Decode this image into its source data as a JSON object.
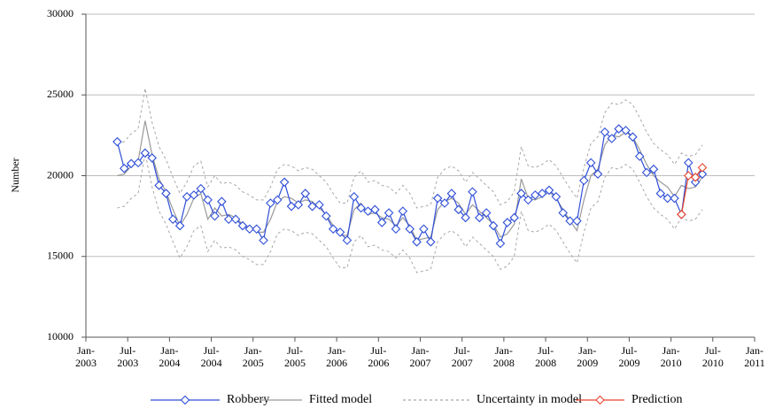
{
  "chart_data": {
    "type": "line",
    "y_label": "Number",
    "ylim": [
      10000,
      30000
    ],
    "yticks": [
      10000,
      15000,
      20000,
      25000,
      30000
    ],
    "grid": true,
    "xlim": [
      "2003-01",
      "2011-01"
    ],
    "xticks": [
      {
        "value": "2003-01",
        "label": "Jan-\n2003"
      },
      {
        "value": "2003-07",
        "label": "Jul-\n2003"
      },
      {
        "value": "2004-01",
        "label": "Jan-\n2004"
      },
      {
        "value": "2004-07",
        "label": "Jul-\n2004"
      },
      {
        "value": "2005-01",
        "label": "Jan-\n2005"
      },
      {
        "value": "2005-07",
        "label": "Jul-\n2005"
      },
      {
        "value": "2006-01",
        "label": "Jan-\n2006"
      },
      {
        "value": "2006-07",
        "label": "Jul-\n2006"
      },
      {
        "value": "2007-01",
        "label": "Jan-\n2007"
      },
      {
        "value": "2007-07",
        "label": "Jul-\n2007"
      },
      {
        "value": "2008-01",
        "label": "Jan-\n2008"
      },
      {
        "value": "2008-07",
        "label": "Jul-\n2008"
      },
      {
        "value": "2009-01",
        "label": "Jan-\n2009"
      },
      {
        "value": "2009-07",
        "label": "Jul-\n2009"
      },
      {
        "value": "2010-01",
        "label": "Jan-\n2010"
      },
      {
        "value": "2010-07",
        "label": "Jul-\n2010"
      },
      {
        "value": "2011-01",
        "label": "Jan-\n2011"
      }
    ],
    "x": [
      "2003-05",
      "2003-06",
      "2003-07",
      "2003-08",
      "2003-09",
      "2003-10",
      "2003-11",
      "2003-12",
      "2004-01",
      "2004-02",
      "2004-03",
      "2004-04",
      "2004-05",
      "2004-06",
      "2004-07",
      "2004-08",
      "2004-09",
      "2004-10",
      "2004-11",
      "2004-12",
      "2005-01",
      "2005-02",
      "2005-03",
      "2005-04",
      "2005-05",
      "2005-06",
      "2005-07",
      "2005-08",
      "2005-09",
      "2005-10",
      "2005-11",
      "2005-12",
      "2006-01",
      "2006-02",
      "2006-03",
      "2006-04",
      "2006-05",
      "2006-06",
      "2006-07",
      "2006-08",
      "2006-09",
      "2006-10",
      "2006-11",
      "2006-12",
      "2007-01",
      "2007-02",
      "2007-03",
      "2007-04",
      "2007-05",
      "2007-06",
      "2007-07",
      "2007-08",
      "2007-09",
      "2007-10",
      "2007-11",
      "2007-12",
      "2008-01",
      "2008-02",
      "2008-03",
      "2008-04",
      "2008-05",
      "2008-06",
      "2008-07",
      "2008-08",
      "2008-09",
      "2008-10",
      "2008-11",
      "2008-12",
      "2009-01",
      "2009-02",
      "2009-03",
      "2009-04",
      "2009-05",
      "2009-06",
      "2009-07",
      "2009-08",
      "2009-09",
      "2009-10",
      "2009-11",
      "2009-12",
      "2010-01",
      "2010-02",
      "2010-03",
      "2010-04",
      "2010-05"
    ],
    "series": [
      {
        "name": "Robbery",
        "color": "#2f4fd8",
        "marker": "diamond",
        "dashed": false,
        "values": [
          22100,
          20450,
          20750,
          20800,
          21400,
          21100,
          19400,
          18900,
          17300,
          16900,
          18700,
          18800,
          19200,
          18500,
          17500,
          18400,
          17300,
          17300,
          16900,
          16700,
          16700,
          16000,
          18300,
          18500,
          19600,
          18100,
          18200,
          18900,
          18100,
          18200,
          17500,
          16700,
          16500,
          16000,
          18700,
          18000,
          17800,
          17900,
          17100,
          17700,
          16700,
          17800,
          16700,
          15900,
          16700,
          15900,
          18600,
          18300,
          18900,
          17900,
          17400,
          19000,
          17400,
          17700,
          16900,
          15800,
          17100,
          17400,
          18900,
          18500,
          18800,
          18900,
          19100,
          18700,
          17700,
          17200,
          17200,
          19700,
          20800,
          20100,
          22700,
          22300,
          22900,
          22800,
          22400,
          21200,
          20200,
          20400,
          18900,
          18600,
          18600,
          17600,
          20800,
          19600,
          20100
        ]
      },
      {
        "name": "Fitted model",
        "color": "#999999",
        "marker": "none",
        "dashed": false,
        "values": [
          20000,
          20100,
          20600,
          20900,
          23400,
          21300,
          19800,
          19000,
          17900,
          16900,
          17600,
          18600,
          18900,
          17300,
          18000,
          17500,
          17600,
          17400,
          17000,
          16800,
          16500,
          16500,
          17300,
          18400,
          18700,
          18600,
          18300,
          18500,
          18400,
          18000,
          17600,
          16900,
          16300,
          16300,
          17900,
          18300,
          17600,
          17700,
          17400,
          17300,
          16900,
          17400,
          16900,
          16000,
          16100,
          16200,
          17900,
          18400,
          18600,
          18300,
          17600,
          18200,
          17800,
          17400,
          17000,
          16200,
          16400,
          17000,
          19800,
          18600,
          18500,
          18700,
          19000,
          18600,
          17900,
          17200,
          16600,
          18500,
          20000,
          20400,
          21900,
          22500,
          22400,
          22700,
          22400,
          21600,
          20700,
          20000,
          19600,
          19300,
          18700,
          19400,
          19200,
          19300,
          19900
        ]
      },
      {
        "name": "Uncertainty in model",
        "color": "#a8a8a8",
        "marker": "none",
        "dashed": true,
        "values": [
          22000,
          22100,
          22600,
          22900,
          25400,
          23300,
          21800,
          21000,
          19900,
          18900,
          19600,
          20600,
          20900,
          19300,
          20000,
          19500,
          19600,
          19400,
          19000,
          18800,
          18500,
          18500,
          19300,
          20400,
          20700,
          20600,
          20300,
          20500,
          20400,
          20000,
          19600,
          18900,
          18300,
          18300,
          19900,
          20300,
          19600,
          19700,
          19400,
          19300,
          18900,
          19400,
          18900,
          18000,
          18100,
          18200,
          19900,
          20400,
          20600,
          20300,
          19600,
          20200,
          19800,
          19400,
          19000,
          18200,
          18400,
          19000,
          21800,
          20600,
          20500,
          20700,
          21000,
          20600,
          19900,
          19200,
          18600,
          20500,
          22000,
          22400,
          23900,
          24500,
          24400,
          24700,
          24400,
          23600,
          22700,
          22000,
          21600,
          21300,
          20700,
          21400,
          21200,
          21300,
          21900
        ],
        "lower": [
          18000,
          18100,
          18600,
          18900,
          21400,
          19300,
          17800,
          17000,
          15900,
          14900,
          15600,
          16600,
          16900,
          15300,
          16000,
          15500,
          15600,
          15400,
          15000,
          14800,
          14500,
          14500,
          15300,
          16400,
          16700,
          16600,
          16300,
          16500,
          16400,
          16000,
          15600,
          14900,
          14300,
          14300,
          15900,
          16300,
          15600,
          15700,
          15400,
          15300,
          14900,
          15400,
          14900,
          14000,
          14100,
          14200,
          15900,
          16400,
          16600,
          16300,
          15600,
          16200,
          15800,
          15400,
          15000,
          14200,
          14400,
          15000,
          17800,
          16600,
          16500,
          16700,
          17000,
          16600,
          15900,
          15200,
          14600,
          16500,
          18000,
          18400,
          19900,
          20500,
          20400,
          20700,
          20400,
          19600,
          18700,
          18000,
          17600,
          17300,
          16700,
          17400,
          17200,
          17300,
          17900
        ]
      },
      {
        "name": "Prediction",
        "color": "#e8452c",
        "marker": "diamond",
        "dashed": false,
        "x": [
          "2010-02",
          "2010-03",
          "2010-04",
          "2010-05"
        ],
        "values": [
          17600,
          20000,
          19900,
          20500
        ]
      }
    ]
  }
}
